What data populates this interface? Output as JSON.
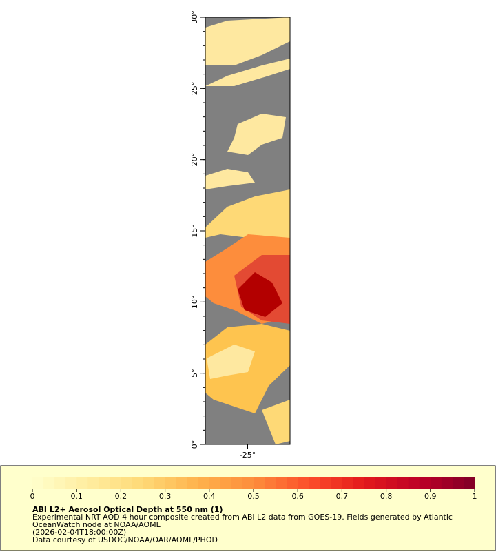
{
  "map": {
    "lat_axis": {
      "range": [
        0,
        30
      ],
      "ticks": [
        {
          "value": 0,
          "label": "0°"
        },
        {
          "value": 5,
          "label": "5°"
        },
        {
          "value": 10,
          "label": "10°"
        },
        {
          "value": 15,
          "label": "15°"
        },
        {
          "value": 20,
          "label": "20°"
        },
        {
          "value": 25,
          "label": "25°"
        },
        {
          "value": 30,
          "label": "30°"
        }
      ]
    },
    "lon_axis": {
      "range": [
        -28,
        -22
      ],
      "ticks": [
        {
          "value": -25,
          "label": "-25°"
        }
      ]
    }
  },
  "legend": {
    "title": "ABI L2+ Aerosol Optical Depth at 550 nm (1)",
    "lines": [
      "Experimental NRT AOD 4 hour composite created from ABI L2 data from GOES-19. Fields generated by Atlantic",
      "OceanWatch node at NOAA/AOML",
      "(2026-02-04T18:00:00Z)",
      "Data courtesy of USDOC/NOAA/OAR/AOML/PHOD"
    ],
    "colorbar": {
      "range": [
        0,
        1
      ],
      "ticks": [
        0,
        0.1,
        0.2,
        0.3,
        0.4,
        0.5,
        0.6,
        0.7,
        0.8,
        0.9,
        1
      ],
      "colors": [
        "#ffffcc",
        "#ffeda0",
        "#fed976",
        "#feb24c",
        "#fd8d3c",
        "#fc4e2a",
        "#e31a1c",
        "#bd0026",
        "#800026"
      ]
    }
  }
}
